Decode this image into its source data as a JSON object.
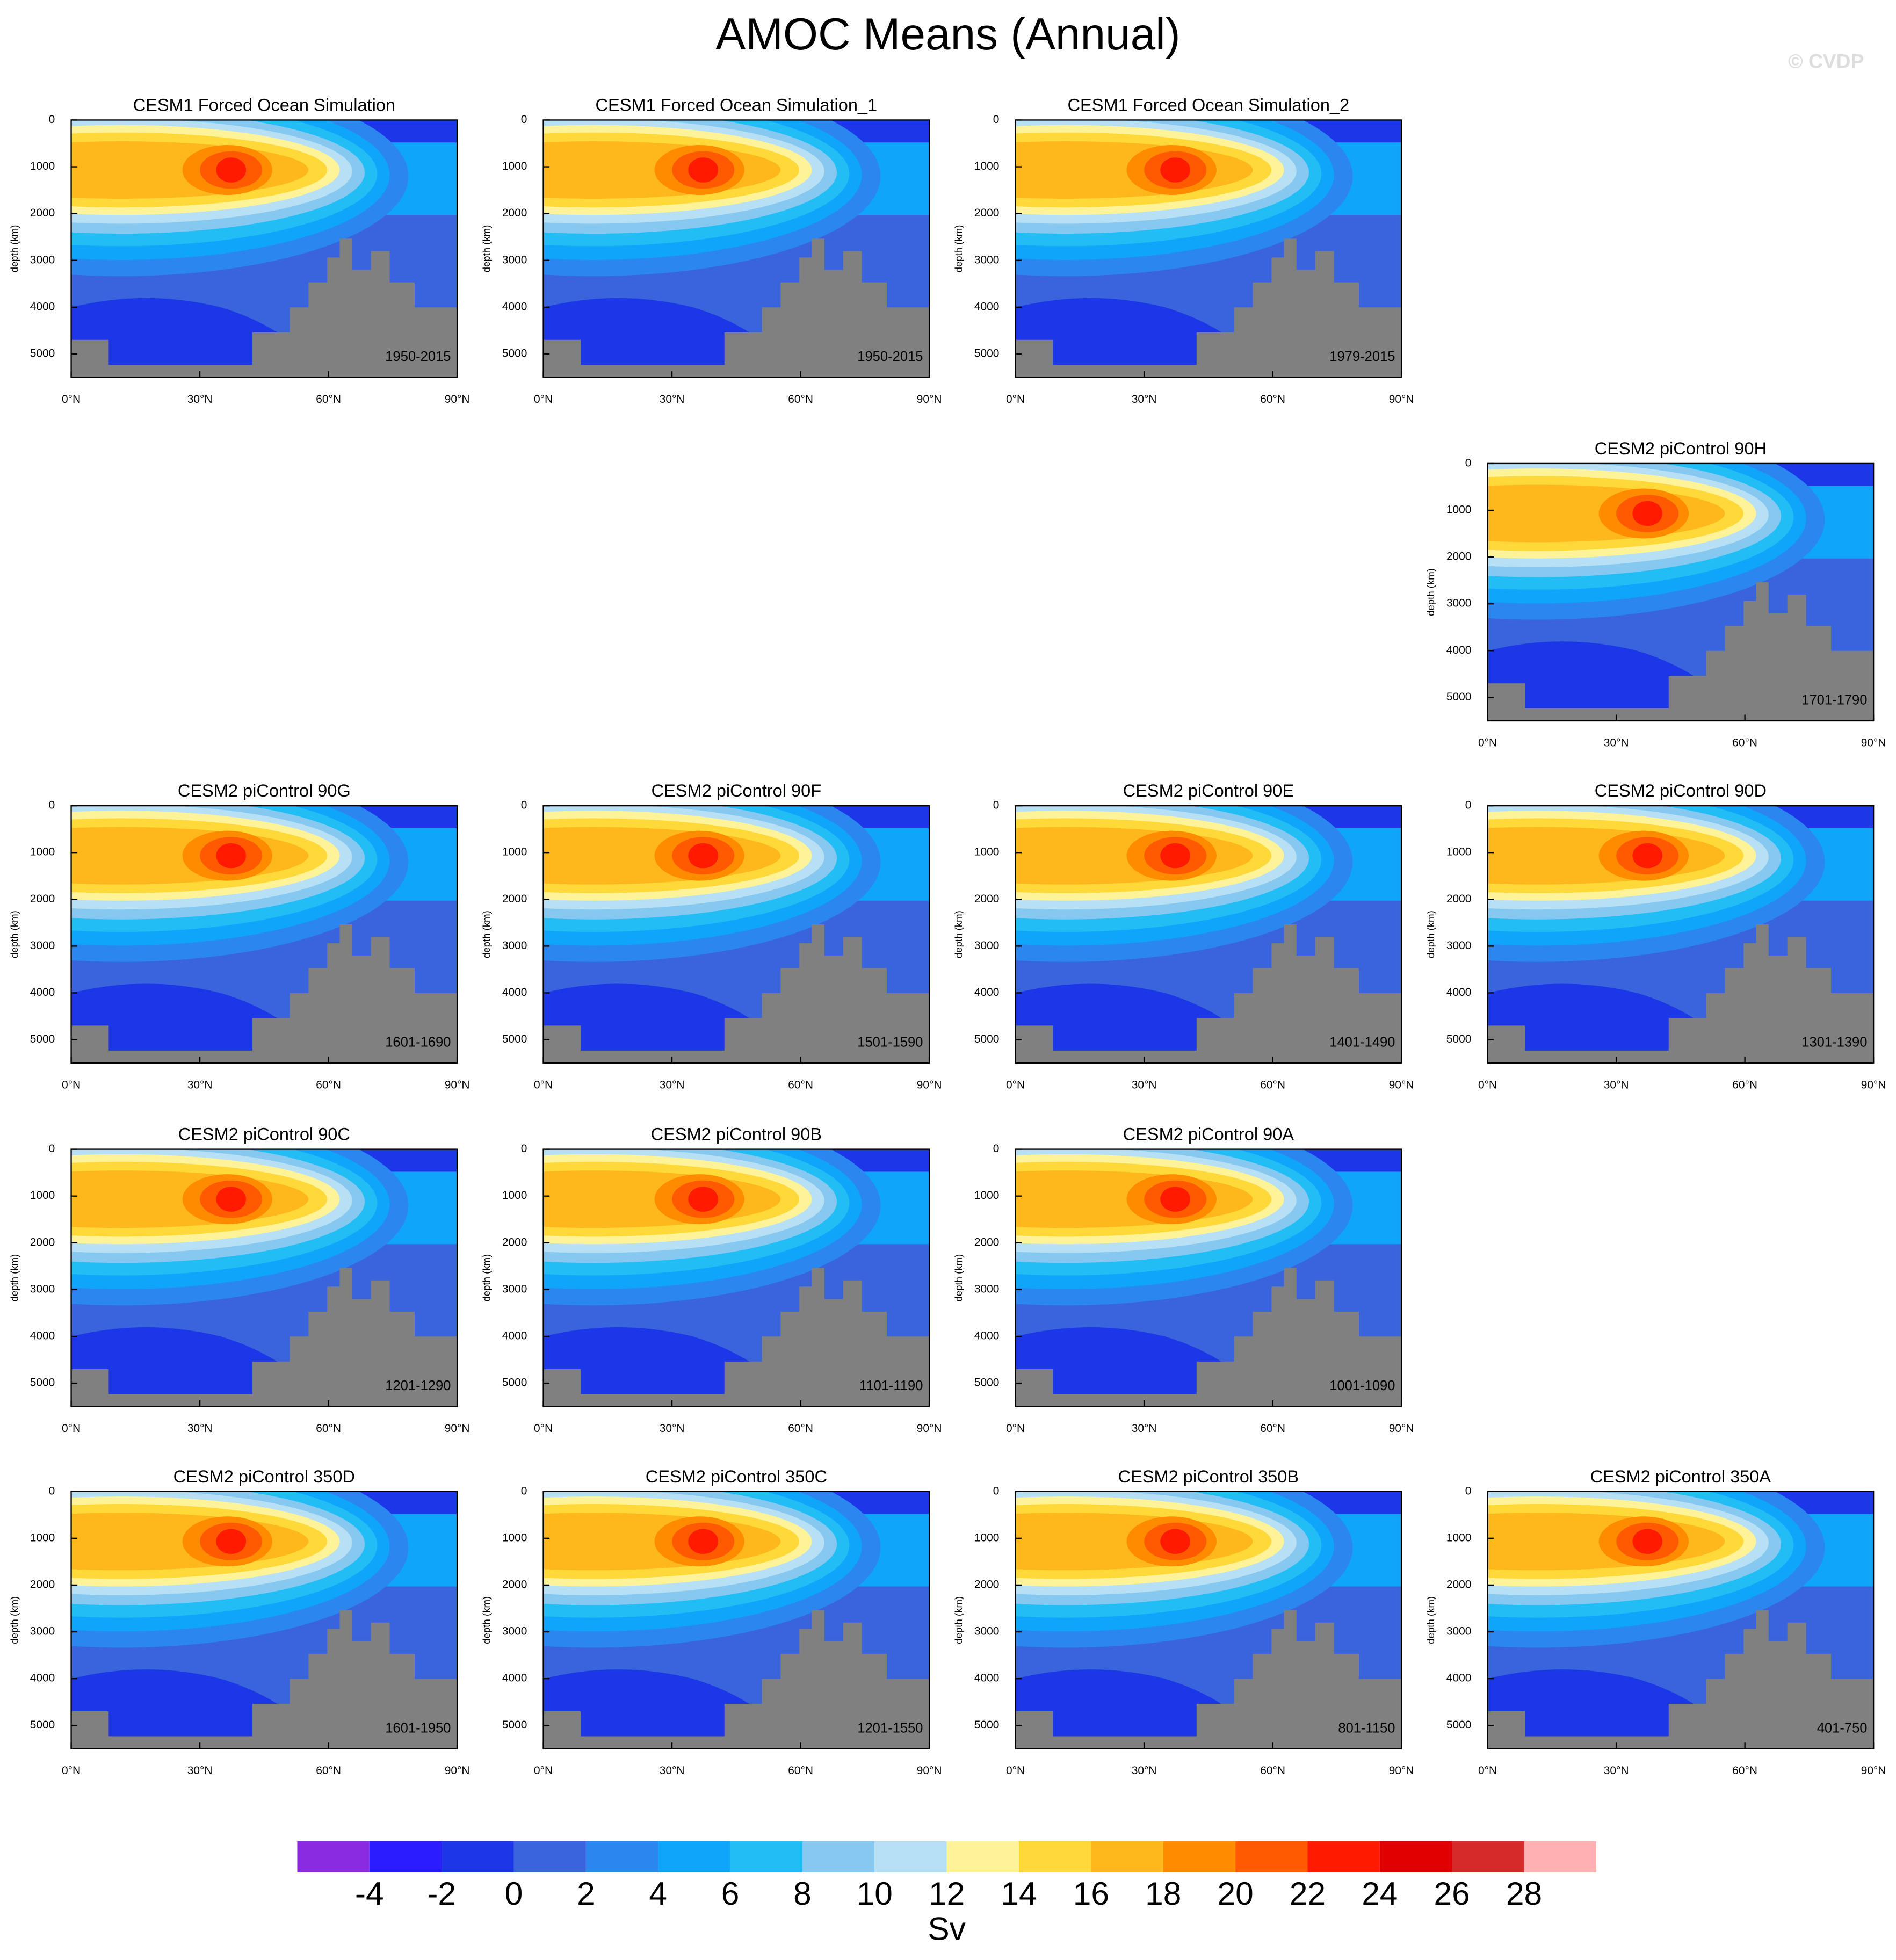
{
  "title": "AMOC Means (Annual)",
  "watermark": "© CVDP",
  "chart_data": [
    {
      "type": "contour",
      "title": "CESM1 Forced Ocean Simulation",
      "subtitle": "1950-2015",
      "ylabel": "depth (km)",
      "xlim": [
        0,
        90
      ],
      "ylim": [
        5500,
        0
      ],
      "xticks": [
        {
          "value": 0,
          "label": "0°N"
        },
        {
          "value": 30,
          "label": "30°N"
        },
        {
          "value": 60,
          "label": "60°N"
        },
        {
          "value": 90,
          "label": "90°N"
        }
      ],
      "yticks": [
        0,
        1000,
        2000,
        3000,
        4000,
        5000
      ]
    },
    {
      "type": "contour",
      "title": "CESM1 Forced Ocean Simulation_1",
      "subtitle": "1950-2015",
      "ylabel": "depth (km)",
      "xlim": [
        0,
        90
      ],
      "ylim": [
        5500,
        0
      ],
      "xticks": [
        {
          "value": 0,
          "label": "0°N"
        },
        {
          "value": 30,
          "label": "30°N"
        },
        {
          "value": 60,
          "label": "60°N"
        },
        {
          "value": 90,
          "label": "90°N"
        }
      ],
      "yticks": [
        0,
        1000,
        2000,
        3000,
        4000,
        5000
      ]
    },
    {
      "type": "contour",
      "title": "CESM1 Forced Ocean Simulation_2",
      "subtitle": "1979-2015",
      "ylabel": "depth (km)",
      "xlim": [
        0,
        90
      ],
      "ylim": [
        5500,
        0
      ],
      "xticks": [
        {
          "value": 0,
          "label": "0°N"
        },
        {
          "value": 30,
          "label": "30°N"
        },
        {
          "value": 60,
          "label": "60°N"
        },
        {
          "value": 90,
          "label": "90°N"
        }
      ],
      "yticks": [
        0,
        1000,
        2000,
        3000,
        4000,
        5000
      ]
    },
    {
      "type": "contour",
      "title": "CESM2 piControl 90H",
      "subtitle": "1701-1790",
      "ylabel": "depth (km)",
      "xlim": [
        0,
        90
      ],
      "ylim": [
        5500,
        0
      ],
      "xticks": [
        {
          "value": 0,
          "label": "0°N"
        },
        {
          "value": 30,
          "label": "30°N"
        },
        {
          "value": 60,
          "label": "60°N"
        },
        {
          "value": 90,
          "label": "90°N"
        }
      ],
      "yticks": [
        0,
        1000,
        2000,
        3000,
        4000,
        5000
      ]
    },
    {
      "type": "contour",
      "title": "CESM2 piControl 90G",
      "subtitle": "1601-1690",
      "ylabel": "depth (km)",
      "xlim": [
        0,
        90
      ],
      "ylim": [
        5500,
        0
      ],
      "xticks": [
        {
          "value": 0,
          "label": "0°N"
        },
        {
          "value": 30,
          "label": "30°N"
        },
        {
          "value": 60,
          "label": "60°N"
        },
        {
          "value": 90,
          "label": "90°N"
        }
      ],
      "yticks": [
        0,
        1000,
        2000,
        3000,
        4000,
        5000
      ]
    },
    {
      "type": "contour",
      "title": "CESM2 piControl 90F",
      "subtitle": "1501-1590",
      "ylabel": "depth (km)",
      "xlim": [
        0,
        90
      ],
      "ylim": [
        5500,
        0
      ],
      "xticks": [
        {
          "value": 0,
          "label": "0°N"
        },
        {
          "value": 30,
          "label": "30°N"
        },
        {
          "value": 60,
          "label": "60°N"
        },
        {
          "value": 90,
          "label": "90°N"
        }
      ],
      "yticks": [
        0,
        1000,
        2000,
        3000,
        4000,
        5000
      ]
    },
    {
      "type": "contour",
      "title": "CESM2 piControl 90E",
      "subtitle": "1401-1490",
      "ylabel": "depth (km)",
      "xlim": [
        0,
        90
      ],
      "ylim": [
        5500,
        0
      ],
      "xticks": [
        {
          "value": 0,
          "label": "0°N"
        },
        {
          "value": 30,
          "label": "30°N"
        },
        {
          "value": 60,
          "label": "60°N"
        },
        {
          "value": 90,
          "label": "90°N"
        }
      ],
      "yticks": [
        0,
        1000,
        2000,
        3000,
        4000,
        5000
      ]
    },
    {
      "type": "contour",
      "title": "CESM2 piControl 90D",
      "subtitle": "1301-1390",
      "ylabel": "depth (km)",
      "xlim": [
        0,
        90
      ],
      "ylim": [
        5500,
        0
      ],
      "xticks": [
        {
          "value": 0,
          "label": "0°N"
        },
        {
          "value": 30,
          "label": "30°N"
        },
        {
          "value": 60,
          "label": "60°N"
        },
        {
          "value": 90,
          "label": "90°N"
        }
      ],
      "yticks": [
        0,
        1000,
        2000,
        3000,
        4000,
        5000
      ]
    },
    {
      "type": "contour",
      "title": "CESM2 piControl 90C",
      "subtitle": "1201-1290",
      "ylabel": "depth (km)",
      "xlim": [
        0,
        90
      ],
      "ylim": [
        5500,
        0
      ],
      "xticks": [
        {
          "value": 0,
          "label": "0°N"
        },
        {
          "value": 30,
          "label": "30°N"
        },
        {
          "value": 60,
          "label": "60°N"
        },
        {
          "value": 90,
          "label": "90°N"
        }
      ],
      "yticks": [
        0,
        1000,
        2000,
        3000,
        4000,
        5000
      ]
    },
    {
      "type": "contour",
      "title": "CESM2 piControl 90B",
      "subtitle": "1101-1190",
      "ylabel": "depth (km)",
      "xlim": [
        0,
        90
      ],
      "ylim": [
        5500,
        0
      ],
      "xticks": [
        {
          "value": 0,
          "label": "0°N"
        },
        {
          "value": 30,
          "label": "30°N"
        },
        {
          "value": 60,
          "label": "60°N"
        },
        {
          "value": 90,
          "label": "90°N"
        }
      ],
      "yticks": [
        0,
        1000,
        2000,
        3000,
        4000,
        5000
      ]
    },
    {
      "type": "contour",
      "title": "CESM2 piControl 90A",
      "subtitle": "1001-1090",
      "ylabel": "depth (km)",
      "xlim": [
        0,
        90
      ],
      "ylim": [
        5500,
        0
      ],
      "xticks": [
        {
          "value": 0,
          "label": "0°N"
        },
        {
          "value": 30,
          "label": "30°N"
        },
        {
          "value": 60,
          "label": "60°N"
        },
        {
          "value": 90,
          "label": "90°N"
        }
      ],
      "yticks": [
        0,
        1000,
        2000,
        3000,
        4000,
        5000
      ]
    },
    {
      "type": "contour",
      "title": "CESM2 piControl 350D",
      "subtitle": "1601-1950",
      "ylabel": "depth (km)",
      "xlim": [
        0,
        90
      ],
      "ylim": [
        5500,
        0
      ],
      "xticks": [
        {
          "value": 0,
          "label": "0°N"
        },
        {
          "value": 30,
          "label": "30°N"
        },
        {
          "value": 60,
          "label": "60°N"
        },
        {
          "value": 90,
          "label": "90°N"
        }
      ],
      "yticks": [
        0,
        1000,
        2000,
        3000,
        4000,
        5000
      ]
    },
    {
      "type": "contour",
      "title": "CESM2 piControl 350C",
      "subtitle": "1201-1550",
      "ylabel": "depth (km)",
      "xlim": [
        0,
        90
      ],
      "ylim": [
        5500,
        0
      ],
      "xticks": [
        {
          "value": 0,
          "label": "0°N"
        },
        {
          "value": 30,
          "label": "30°N"
        },
        {
          "value": 60,
          "label": "60°N"
        },
        {
          "value": 90,
          "label": "90°N"
        }
      ],
      "yticks": [
        0,
        1000,
        2000,
        3000,
        4000,
        5000
      ]
    },
    {
      "type": "contour",
      "title": "CESM2 piControl 350B",
      "subtitle": "801-1150",
      "ylabel": "depth (km)",
      "xlim": [
        0,
        90
      ],
      "ylim": [
        5500,
        0
      ],
      "xticks": [
        {
          "value": 0,
          "label": "0°N"
        },
        {
          "value": 30,
          "label": "30°N"
        },
        {
          "value": 60,
          "label": "60°N"
        },
        {
          "value": 90,
          "label": "90°N"
        }
      ],
      "yticks": [
        0,
        1000,
        2000,
        3000,
        4000,
        5000
      ]
    },
    {
      "type": "contour",
      "title": "CESM2 piControl 350A",
      "subtitle": "401-750",
      "ylabel": "depth (km)",
      "xlim": [
        0,
        90
      ],
      "ylim": [
        5500,
        0
      ],
      "xticks": [
        {
          "value": 0,
          "label": "0°N"
        },
        {
          "value": 30,
          "label": "30°N"
        },
        {
          "value": 60,
          "label": "60°N"
        },
        {
          "value": 90,
          "label": "90°N"
        }
      ],
      "yticks": [
        0,
        1000,
        2000,
        3000,
        4000,
        5000
      ]
    },
    {
      "type": "colorbar",
      "label": "Sv",
      "levels": [
        -4,
        -2,
        0,
        2,
        4,
        6,
        8,
        10,
        12,
        14,
        16,
        18,
        20,
        22,
        24,
        26,
        28
      ],
      "colors": [
        "#8a2be2",
        "#2b1bff",
        "#1c37e8",
        "#3a64db",
        "#2b86f0",
        "#0fa5fa",
        "#21bef5",
        "#87c8f0",
        "#b8e0f5",
        "#fff39a",
        "#ffd93a",
        "#ffb81c",
        "#ff8c00",
        "#ff5a00",
        "#ff1a00",
        "#e00000",
        "#d42a2a",
        "#ffb0b0"
      ]
    }
  ]
}
